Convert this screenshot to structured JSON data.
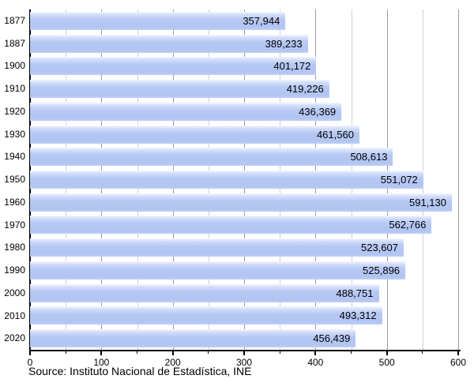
{
  "chart_data": {
    "type": "bar",
    "orientation": "horizontal",
    "title": "",
    "xlabel": "",
    "ylabel": "",
    "categories": [
      "1877",
      "1887",
      "1900",
      "1910",
      "1920",
      "1930",
      "1940",
      "1950",
      "1960",
      "1970",
      "1980",
      "1990",
      "2000",
      "2010",
      "2020"
    ],
    "values": [
      357944,
      389233,
      401172,
      419226,
      436369,
      461560,
      508613,
      551072,
      591130,
      562766,
      523607,
      525896,
      488751,
      493312,
      456439
    ],
    "value_labels": [
      "357,944",
      "389,233",
      "401,172",
      "419,226",
      "436,369",
      "461,560",
      "508,613",
      "551,072",
      "591,130",
      "562,766",
      "523,607",
      "525,896",
      "488,751",
      "493,312",
      "456,439"
    ],
    "x_axis": {
      "min": 0,
      "max": 600,
      "unit_divisor": 1000,
      "major_tick_step": 100,
      "minor_tick_step": 50,
      "major_tick_labels": [
        "0",
        "100",
        "200",
        "300",
        "400",
        "500",
        "600"
      ]
    },
    "grid": true,
    "legend_position": "none",
    "source": "Source: Instituto Nacional de Estadística, INE",
    "colors": {
      "bar_fill": "#b4c7f3",
      "bar_fill_light": "#f3f7fe",
      "grid_major": "#9c9c9c",
      "grid_minor": "#cfcfcf",
      "axis": "#000000",
      "text": "#000000",
      "background": "#ffffff"
    }
  }
}
